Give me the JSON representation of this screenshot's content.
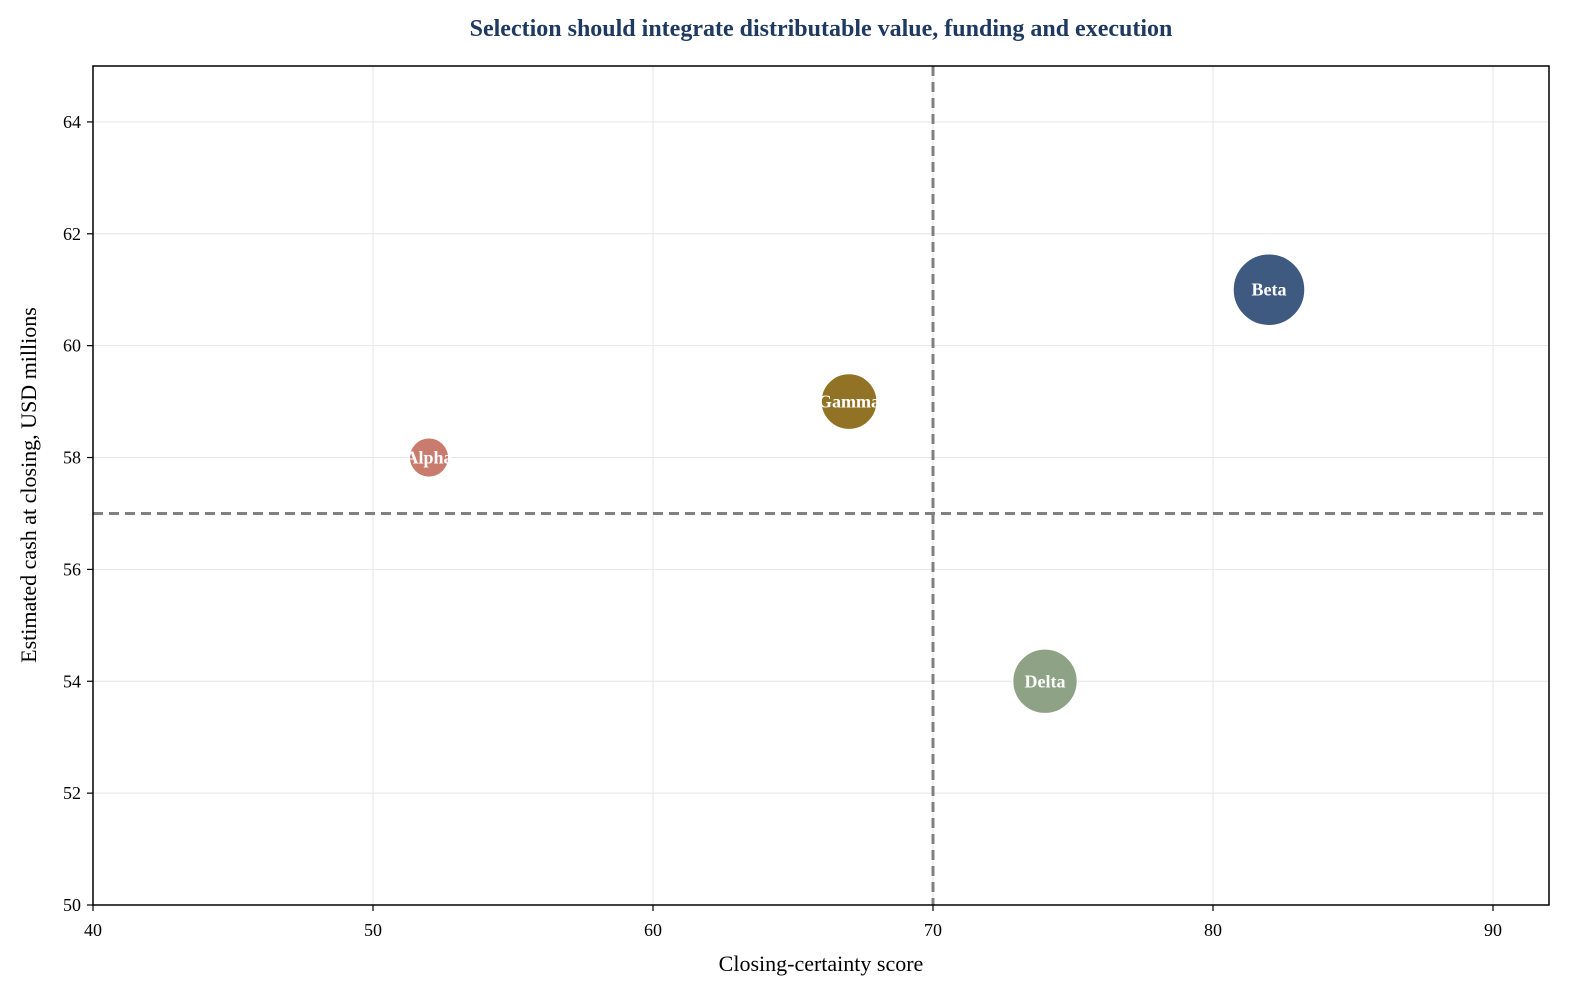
{
  "chart_data": {
    "type": "scatter",
    "title": "Selection should integrate distributable value, funding and execution",
    "xlabel": "Closing-certainty score",
    "ylabel": "Estimated cash at closing, USD millions",
    "xlim": [
      40,
      92
    ],
    "ylim": [
      50,
      65
    ],
    "xticks": [
      40,
      50,
      60,
      70,
      80,
      90
    ],
    "yticks": [
      50,
      52,
      54,
      56,
      58,
      60,
      62,
      64
    ],
    "grid": true,
    "reference_lines": {
      "x": 70,
      "y": 57,
      "color": "#808080",
      "style": "dashed"
    },
    "points": [
      {
        "label": "Alpha",
        "x": 52,
        "y": 58,
        "size": 0.55,
        "color": "#c97b6e"
      },
      {
        "label": "Gamma",
        "x": 67,
        "y": 59,
        "size": 0.78,
        "color": "#927224"
      },
      {
        "label": "Beta",
        "x": 82,
        "y": 61,
        "size": 1.0,
        "color": "#3f5a80"
      },
      {
        "label": "Delta",
        "x": 74,
        "y": 54,
        "size": 0.9,
        "color": "#8ea285"
      }
    ]
  }
}
